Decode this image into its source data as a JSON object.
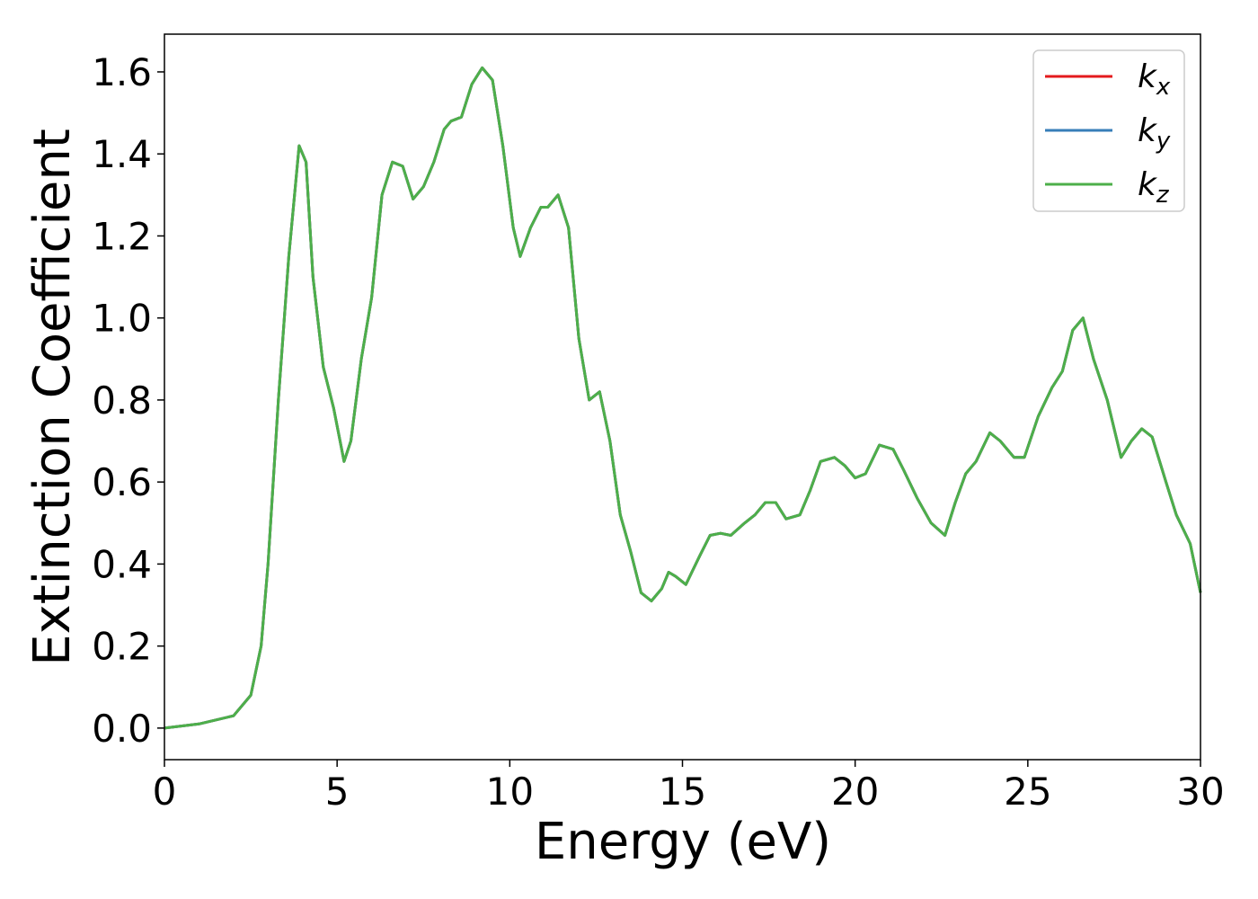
{
  "chart_data": {
    "type": "line",
    "x_label": "Energy (eV)",
    "y_label": "Extinction Coefficient",
    "x": [
      0,
      1,
      2,
      2.5,
      2.8,
      3,
      3.3,
      3.6,
      3.9,
      4.1,
      4.3,
      4.6,
      4.9,
      5.2,
      5.4,
      5.7,
      6.0,
      6.3,
      6.6,
      6.9,
      7.2,
      7.5,
      7.8,
      8.1,
      8.3,
      8.6,
      8.9,
      9.2,
      9.5,
      9.8,
      10.1,
      10.3,
      10.6,
      10.9,
      11.1,
      11.4,
      11.7,
      12.0,
      12.3,
      12.6,
      12.9,
      13.2,
      13.5,
      13.8,
      14.1,
      14.4,
      14.6,
      14.8,
      15.1,
      15.5,
      15.8,
      16.1,
      16.4,
      16.8,
      17.1,
      17.4,
      17.7,
      18.0,
      18.4,
      18.7,
      19.0,
      19.4,
      19.7,
      20.0,
      20.3,
      20.7,
      21.1,
      21.4,
      21.8,
      22.2,
      22.6,
      22.9,
      23.2,
      23.5,
      23.9,
      24.2,
      24.6,
      24.9,
      25.3,
      25.7,
      26.0,
      26.3,
      26.6,
      26.9,
      27.3,
      27.7,
      28.0,
      28.3,
      28.6,
      29.0,
      29.3,
      29.7,
      30
    ],
    "series": [
      {
        "name": "k_x",
        "color": "#e41a1c",
        "values": [
          0.0,
          0.01,
          0.03,
          0.08,
          0.2,
          0.4,
          0.8,
          1.15,
          1.42,
          1.38,
          1.1,
          0.88,
          0.78,
          0.65,
          0.7,
          0.9,
          1.05,
          1.3,
          1.38,
          1.37,
          1.29,
          1.32,
          1.38,
          1.46,
          1.48,
          1.49,
          1.57,
          1.61,
          1.58,
          1.42,
          1.22,
          1.15,
          1.22,
          1.27,
          1.27,
          1.3,
          1.22,
          0.95,
          0.8,
          0.82,
          0.7,
          0.52,
          0.43,
          0.33,
          0.31,
          0.34,
          0.38,
          0.37,
          0.35,
          0.42,
          0.47,
          0.475,
          0.47,
          0.5,
          0.52,
          0.55,
          0.55,
          0.51,
          0.52,
          0.58,
          0.65,
          0.66,
          0.64,
          0.61,
          0.62,
          0.69,
          0.68,
          0.63,
          0.56,
          0.5,
          0.47,
          0.55,
          0.62,
          0.65,
          0.72,
          0.7,
          0.66,
          0.66,
          0.76,
          0.83,
          0.87,
          0.97,
          1.0,
          0.9,
          0.8,
          0.66,
          0.7,
          0.73,
          0.71,
          0.6,
          0.52,
          0.45,
          0.33
        ]
      },
      {
        "name": "k_y",
        "color": "#377eb8",
        "values": [
          0.0,
          0.01,
          0.03,
          0.08,
          0.2,
          0.4,
          0.8,
          1.15,
          1.42,
          1.38,
          1.1,
          0.88,
          0.78,
          0.65,
          0.7,
          0.9,
          1.05,
          1.3,
          1.38,
          1.37,
          1.29,
          1.32,
          1.38,
          1.46,
          1.48,
          1.49,
          1.57,
          1.61,
          1.58,
          1.42,
          1.22,
          1.15,
          1.22,
          1.27,
          1.27,
          1.3,
          1.22,
          0.95,
          0.8,
          0.82,
          0.7,
          0.52,
          0.43,
          0.33,
          0.31,
          0.34,
          0.38,
          0.37,
          0.35,
          0.42,
          0.47,
          0.475,
          0.47,
          0.5,
          0.52,
          0.55,
          0.55,
          0.51,
          0.52,
          0.58,
          0.65,
          0.66,
          0.64,
          0.61,
          0.62,
          0.69,
          0.68,
          0.63,
          0.56,
          0.5,
          0.47,
          0.55,
          0.62,
          0.65,
          0.72,
          0.7,
          0.66,
          0.66,
          0.76,
          0.83,
          0.87,
          0.97,
          1.0,
          0.9,
          0.8,
          0.66,
          0.7,
          0.73,
          0.71,
          0.6,
          0.52,
          0.45,
          0.33
        ]
      },
      {
        "name": "k_z",
        "color": "#4daf4a",
        "values": [
          0.0,
          0.01,
          0.03,
          0.08,
          0.2,
          0.4,
          0.8,
          1.15,
          1.42,
          1.38,
          1.1,
          0.88,
          0.78,
          0.65,
          0.7,
          0.9,
          1.05,
          1.3,
          1.38,
          1.37,
          1.29,
          1.32,
          1.38,
          1.46,
          1.48,
          1.49,
          1.57,
          1.61,
          1.58,
          1.42,
          1.22,
          1.15,
          1.22,
          1.27,
          1.27,
          1.3,
          1.22,
          0.95,
          0.8,
          0.82,
          0.7,
          0.52,
          0.43,
          0.33,
          0.31,
          0.34,
          0.38,
          0.37,
          0.35,
          0.42,
          0.47,
          0.475,
          0.47,
          0.5,
          0.52,
          0.55,
          0.55,
          0.51,
          0.52,
          0.58,
          0.65,
          0.66,
          0.64,
          0.61,
          0.62,
          0.69,
          0.68,
          0.63,
          0.56,
          0.5,
          0.47,
          0.55,
          0.62,
          0.65,
          0.72,
          0.7,
          0.66,
          0.66,
          0.76,
          0.83,
          0.87,
          0.97,
          1.0,
          0.9,
          0.8,
          0.66,
          0.7,
          0.73,
          0.71,
          0.6,
          0.52,
          0.45,
          0.33
        ]
      }
    ],
    "xlim": [
      0,
      30
    ],
    "xticks": [
      0,
      5,
      10,
      15,
      20,
      25,
      30
    ],
    "ylim": [
      -0.077,
      1.692
    ],
    "yticks": [
      {
        "value": 0,
        "label": "0.0"
      },
      0.2,
      0.4,
      0.6,
      0.8,
      {
        "value": 1,
        "label": "1.0"
      },
      1.2,
      1.4,
      1.6
    ],
    "legend": "upper right"
  }
}
